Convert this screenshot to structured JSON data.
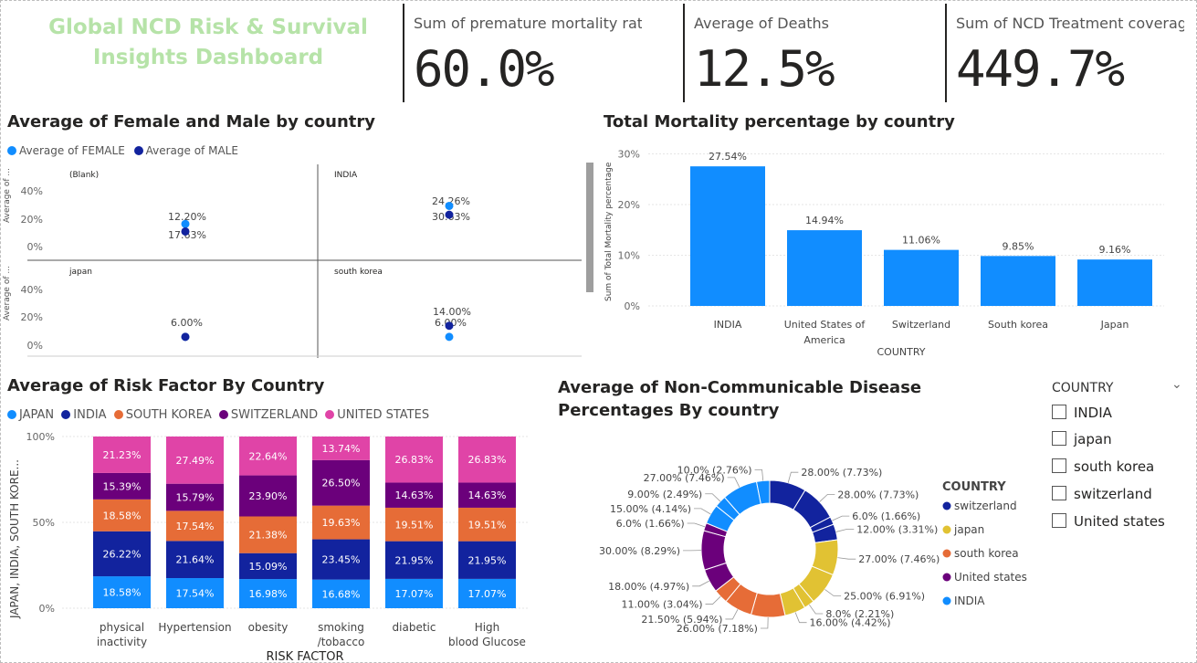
{
  "dashboard": {
    "title": "Global NCD Risk & Survival Insights Dashboard"
  },
  "cards": [
    {
      "label": "Sum of premature mortality rate...",
      "value": "60.0%"
    },
    {
      "label": "Average of Deaths",
      "value": "12.5%"
    },
    {
      "label": "Sum of NCD Treatment coverag...",
      "value": "449.7%"
    }
  ],
  "scatter": {
    "title": "Average of Female and Male by country",
    "legend": [
      {
        "name": "Average of FEMALE",
        "color": "#118dff"
      },
      {
        "name": "Average of MALE",
        "color": "#12239e"
      }
    ],
    "yaxis_label": "Average of ...",
    "yticks": [
      "40%",
      "20%",
      "0%"
    ],
    "panels": [
      {
        "name": "(Blank)",
        "labels": [
          "12.20%",
          "17.63%"
        ]
      },
      {
        "name": "INDIA",
        "labels": [
          "24.26%",
          "30.63%"
        ]
      },
      {
        "name": "japan",
        "labels": [
          "6.00%"
        ]
      },
      {
        "name": "south korea",
        "labels": [
          "14.00%",
          "6.00%"
        ]
      }
    ]
  },
  "chart_data": [
    {
      "type": "scatter",
      "title": "Average of Female and Male by country",
      "ylabel": "Average of ...",
      "ylim": [
        0,
        0.5
      ],
      "series": [
        {
          "name": "Average of FEMALE",
          "points": [
            {
              "panel": "(Blank)",
              "y": 0.1763
            },
            {
              "panel": "INDIA",
              "y": 0.3063
            },
            {
              "panel": "japan",
              "y": 0.06
            },
            {
              "panel": "south korea",
              "y": 0.06
            }
          ]
        },
        {
          "name": "Average of MALE",
          "points": [
            {
              "panel": "(Blank)",
              "y": 0.122
            },
            {
              "panel": "INDIA",
              "y": 0.2426
            },
            {
              "panel": "japan",
              "y": 0.06
            },
            {
              "panel": "south korea",
              "y": 0.14
            }
          ]
        }
      ]
    },
    {
      "type": "bar",
      "title": "Total Mortality percentage by country",
      "xlabel": "COUNTRY",
      "ylabel": "Sum of Total Mortality percentage",
      "categories": [
        "INDIA",
        "United States of America",
        "Switzerland",
        "South korea",
        "Japan"
      ],
      "values": [
        27.54,
        14.94,
        11.06,
        9.85,
        9.16
      ],
      "labels": [
        "27.54%",
        "14.94%",
        "11.06%",
        "9.85%",
        "9.16%"
      ],
      "yticks": [
        "30%",
        "20%",
        "10%",
        "0%"
      ],
      "ylim": [
        0,
        30
      ],
      "color": "#118dff"
    },
    {
      "type": "bar",
      "title": "Average of Risk Factor By Country",
      "xlabel": "RISK FACTOR",
      "ylabel": "JAPAN, INDIA, SOUTH KORE...",
      "stacked": true,
      "yticks": [
        "100%",
        "50%",
        "0%"
      ],
      "categories": [
        "physical inactivity",
        "Hypertension",
        "obesity",
        "smoking /tobacco",
        "diabetic",
        "High blood Glucose"
      ],
      "series": [
        {
          "name": "JAPAN",
          "color": "#118dff",
          "values": [
            18.58,
            17.54,
            16.98,
            16.68,
            17.07,
            17.07
          ]
        },
        {
          "name": "INDIA",
          "color": "#12239e",
          "values": [
            26.22,
            21.64,
            15.09,
            23.45,
            21.95,
            21.95
          ]
        },
        {
          "name": "SOUTH KOREA",
          "color": "#e66c37",
          "values": [
            18.58,
            17.54,
            21.38,
            19.63,
            19.51,
            19.51
          ]
        },
        {
          "name": "SWITZERLAND",
          "color": "#6b007b",
          "values": [
            15.39,
            15.79,
            23.9,
            26.5,
            14.63,
            14.63
          ]
        },
        {
          "name": "UNITED STATES",
          "color": "#e044a7",
          "values": [
            21.23,
            27.49,
            22.64,
            13.74,
            26.83,
            26.83
          ]
        }
      ]
    },
    {
      "type": "pie",
      "title": "Average of Non-Communicable Disease Percentages By country",
      "legend_title": "COUNTRY",
      "legend": [
        {
          "name": "switzerland",
          "color": "#12239e"
        },
        {
          "name": "japan",
          "color": "#e1c233"
        },
        {
          "name": "south korea",
          "color": "#e66c37"
        },
        {
          "name": "United states",
          "color": "#6b007b"
        },
        {
          "name": "INDIA",
          "color": "#118dff"
        }
      ],
      "slices": [
        {
          "country": "switzerland",
          "value": 28.0,
          "label": "28.00% (7.73%)"
        },
        {
          "country": "switzerland",
          "value": 28.0,
          "label": "28.00% (7.73%)"
        },
        {
          "country": "switzerland",
          "value": 6.0,
          "label": "6.0% (1.66%)"
        },
        {
          "country": "switzerland",
          "value": 12.0,
          "label": "12.00% (3.31%)"
        },
        {
          "country": "japan",
          "value": 27.0,
          "label": "27.00% (7.46%)"
        },
        {
          "country": "japan",
          "value": 25.0,
          "label": "25.00% (6.91%)"
        },
        {
          "country": "japan",
          "value": 8.0,
          "label": "8.0% (2.21%)"
        },
        {
          "country": "japan",
          "value": 16.0,
          "label": "16.00% (4.42%)"
        },
        {
          "country": "south korea",
          "value": 26.0,
          "label": "26.00% (7.18%)"
        },
        {
          "country": "south korea",
          "value": 21.5,
          "label": "21.50% (5.94%)"
        },
        {
          "country": "south korea",
          "value": 11.0,
          "label": "11.00% (3.04%)"
        },
        {
          "country": "United states",
          "value": 18.0,
          "label": "18.00% (4.97%)"
        },
        {
          "country": "United states",
          "value": 30.0,
          "label": "30.00% (8.29%)"
        },
        {
          "country": "United states",
          "value": 6.0,
          "label": "6.0% (1.66%)"
        },
        {
          "country": "INDIA",
          "value": 15.0,
          "label": "15.00% (4.14%)"
        },
        {
          "country": "INDIA",
          "value": 9.0,
          "label": "9.00% (2.49%)"
        },
        {
          "country": "INDIA",
          "value": 27.0,
          "label": "27.00% (7.46%)"
        },
        {
          "country": "INDIA",
          "value": 10.0,
          "label": "10.0% (2.76%)"
        }
      ]
    }
  ],
  "slicer": {
    "title": "COUNTRY",
    "chevron": "chevron-down-icon",
    "items": [
      "INDIA",
      "japan",
      "south korea",
      "switzerland",
      "United states"
    ]
  }
}
